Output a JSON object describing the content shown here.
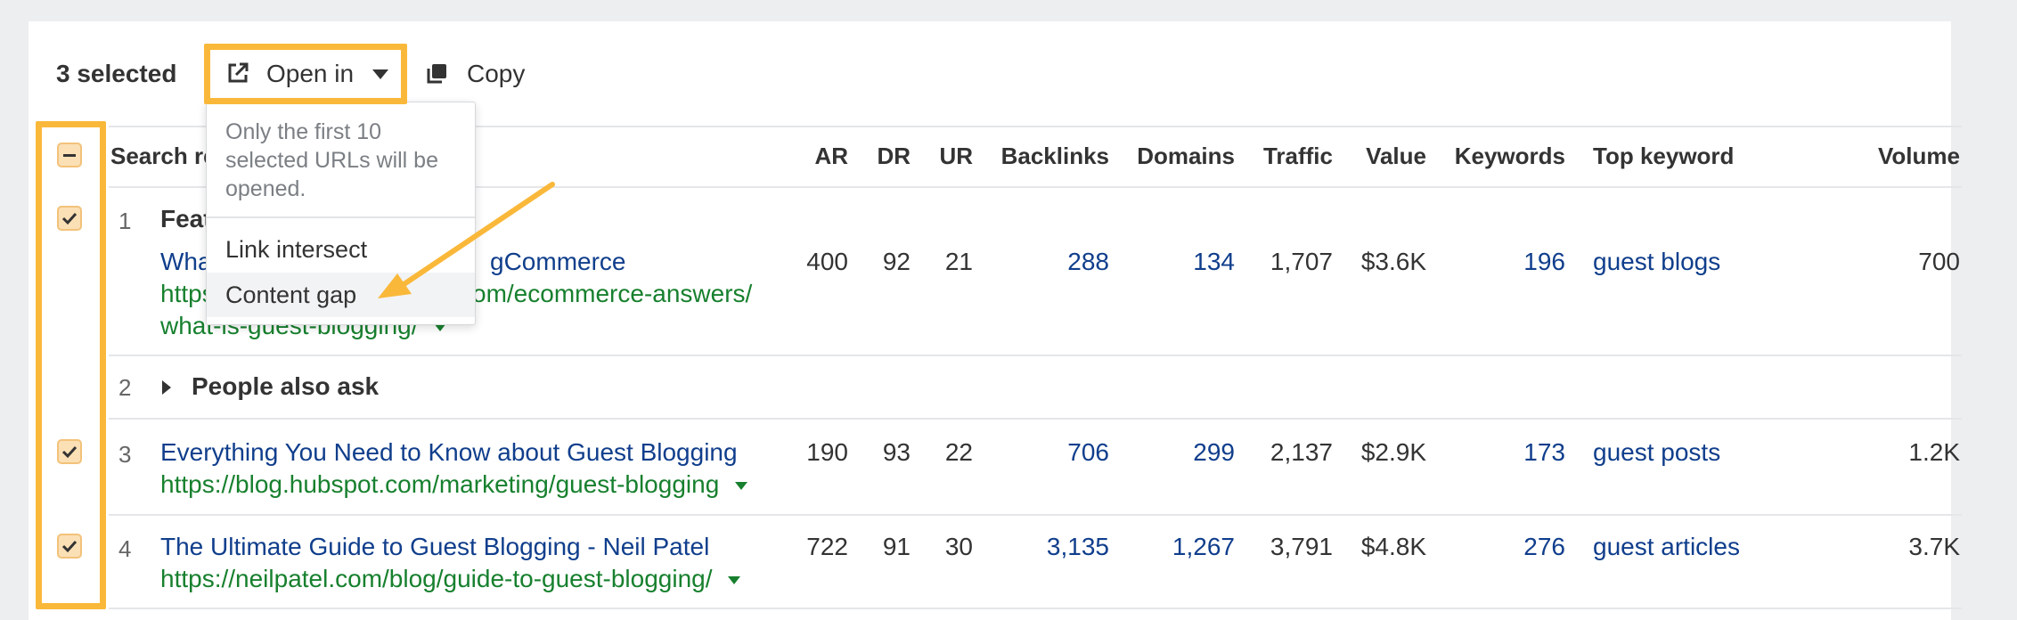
{
  "toolbar": {
    "selected_count": "3 selected",
    "open_in_label": "Open in",
    "copy_label": "Copy"
  },
  "dropdown": {
    "note": "Only the first 10 selected URLs will be opened.",
    "items": [
      "Link intersect",
      "Content gap"
    ]
  },
  "table": {
    "headers": {
      "search_result": "Search re",
      "ar": "AR",
      "dr": "DR",
      "ur": "UR",
      "backlinks": "Backlinks",
      "domains": "Domains",
      "traffic": "Traffic",
      "value": "Value",
      "keywords": "Keywords",
      "top_keyword": "Top keyword",
      "volume": "Volume"
    },
    "rows": [
      {
        "index": "1",
        "group_label": "Feat",
        "title": "Wha",
        "title_end": "gCommerce",
        "url_line1_start": "https",
        "url_line1_end": "om/ecommerce-answers/",
        "url_line2": "what-is-guest-blogging/",
        "ar": "400",
        "dr": "92",
        "ur": "21",
        "backlinks": "288",
        "domains": "134",
        "traffic": "1,707",
        "value": "$3.6K",
        "keywords": "196",
        "top_keyword": "guest blogs",
        "volume": "700"
      },
      {
        "index": "2",
        "section_label": "People also ask"
      },
      {
        "index": "3",
        "title": "Everything You Need to Know about Guest Blogging",
        "url": "https://blog.hubspot.com/marketing/guest-blogging",
        "ar": "190",
        "dr": "93",
        "ur": "22",
        "backlinks": "706",
        "domains": "299",
        "traffic": "2,137",
        "value": "$2.9K",
        "keywords": "173",
        "top_keyword": "guest posts",
        "volume": "1.2K"
      },
      {
        "index": "4",
        "title": "The Ultimate Guide to Guest Blogging - Neil Patel",
        "url": "https://neilpatel.com/blog/guide-to-guest-blogging/",
        "ar": "722",
        "dr": "91",
        "ur": "30",
        "backlinks": "3,135",
        "domains": "1,267",
        "traffic": "3,791",
        "value": "$4.8K",
        "keywords": "276",
        "top_keyword": "guest articles",
        "volume": "3.7K"
      }
    ]
  },
  "colors": {
    "highlight": "#fab83a",
    "link_blue": "#103e8c",
    "url_green": "#17802e"
  }
}
